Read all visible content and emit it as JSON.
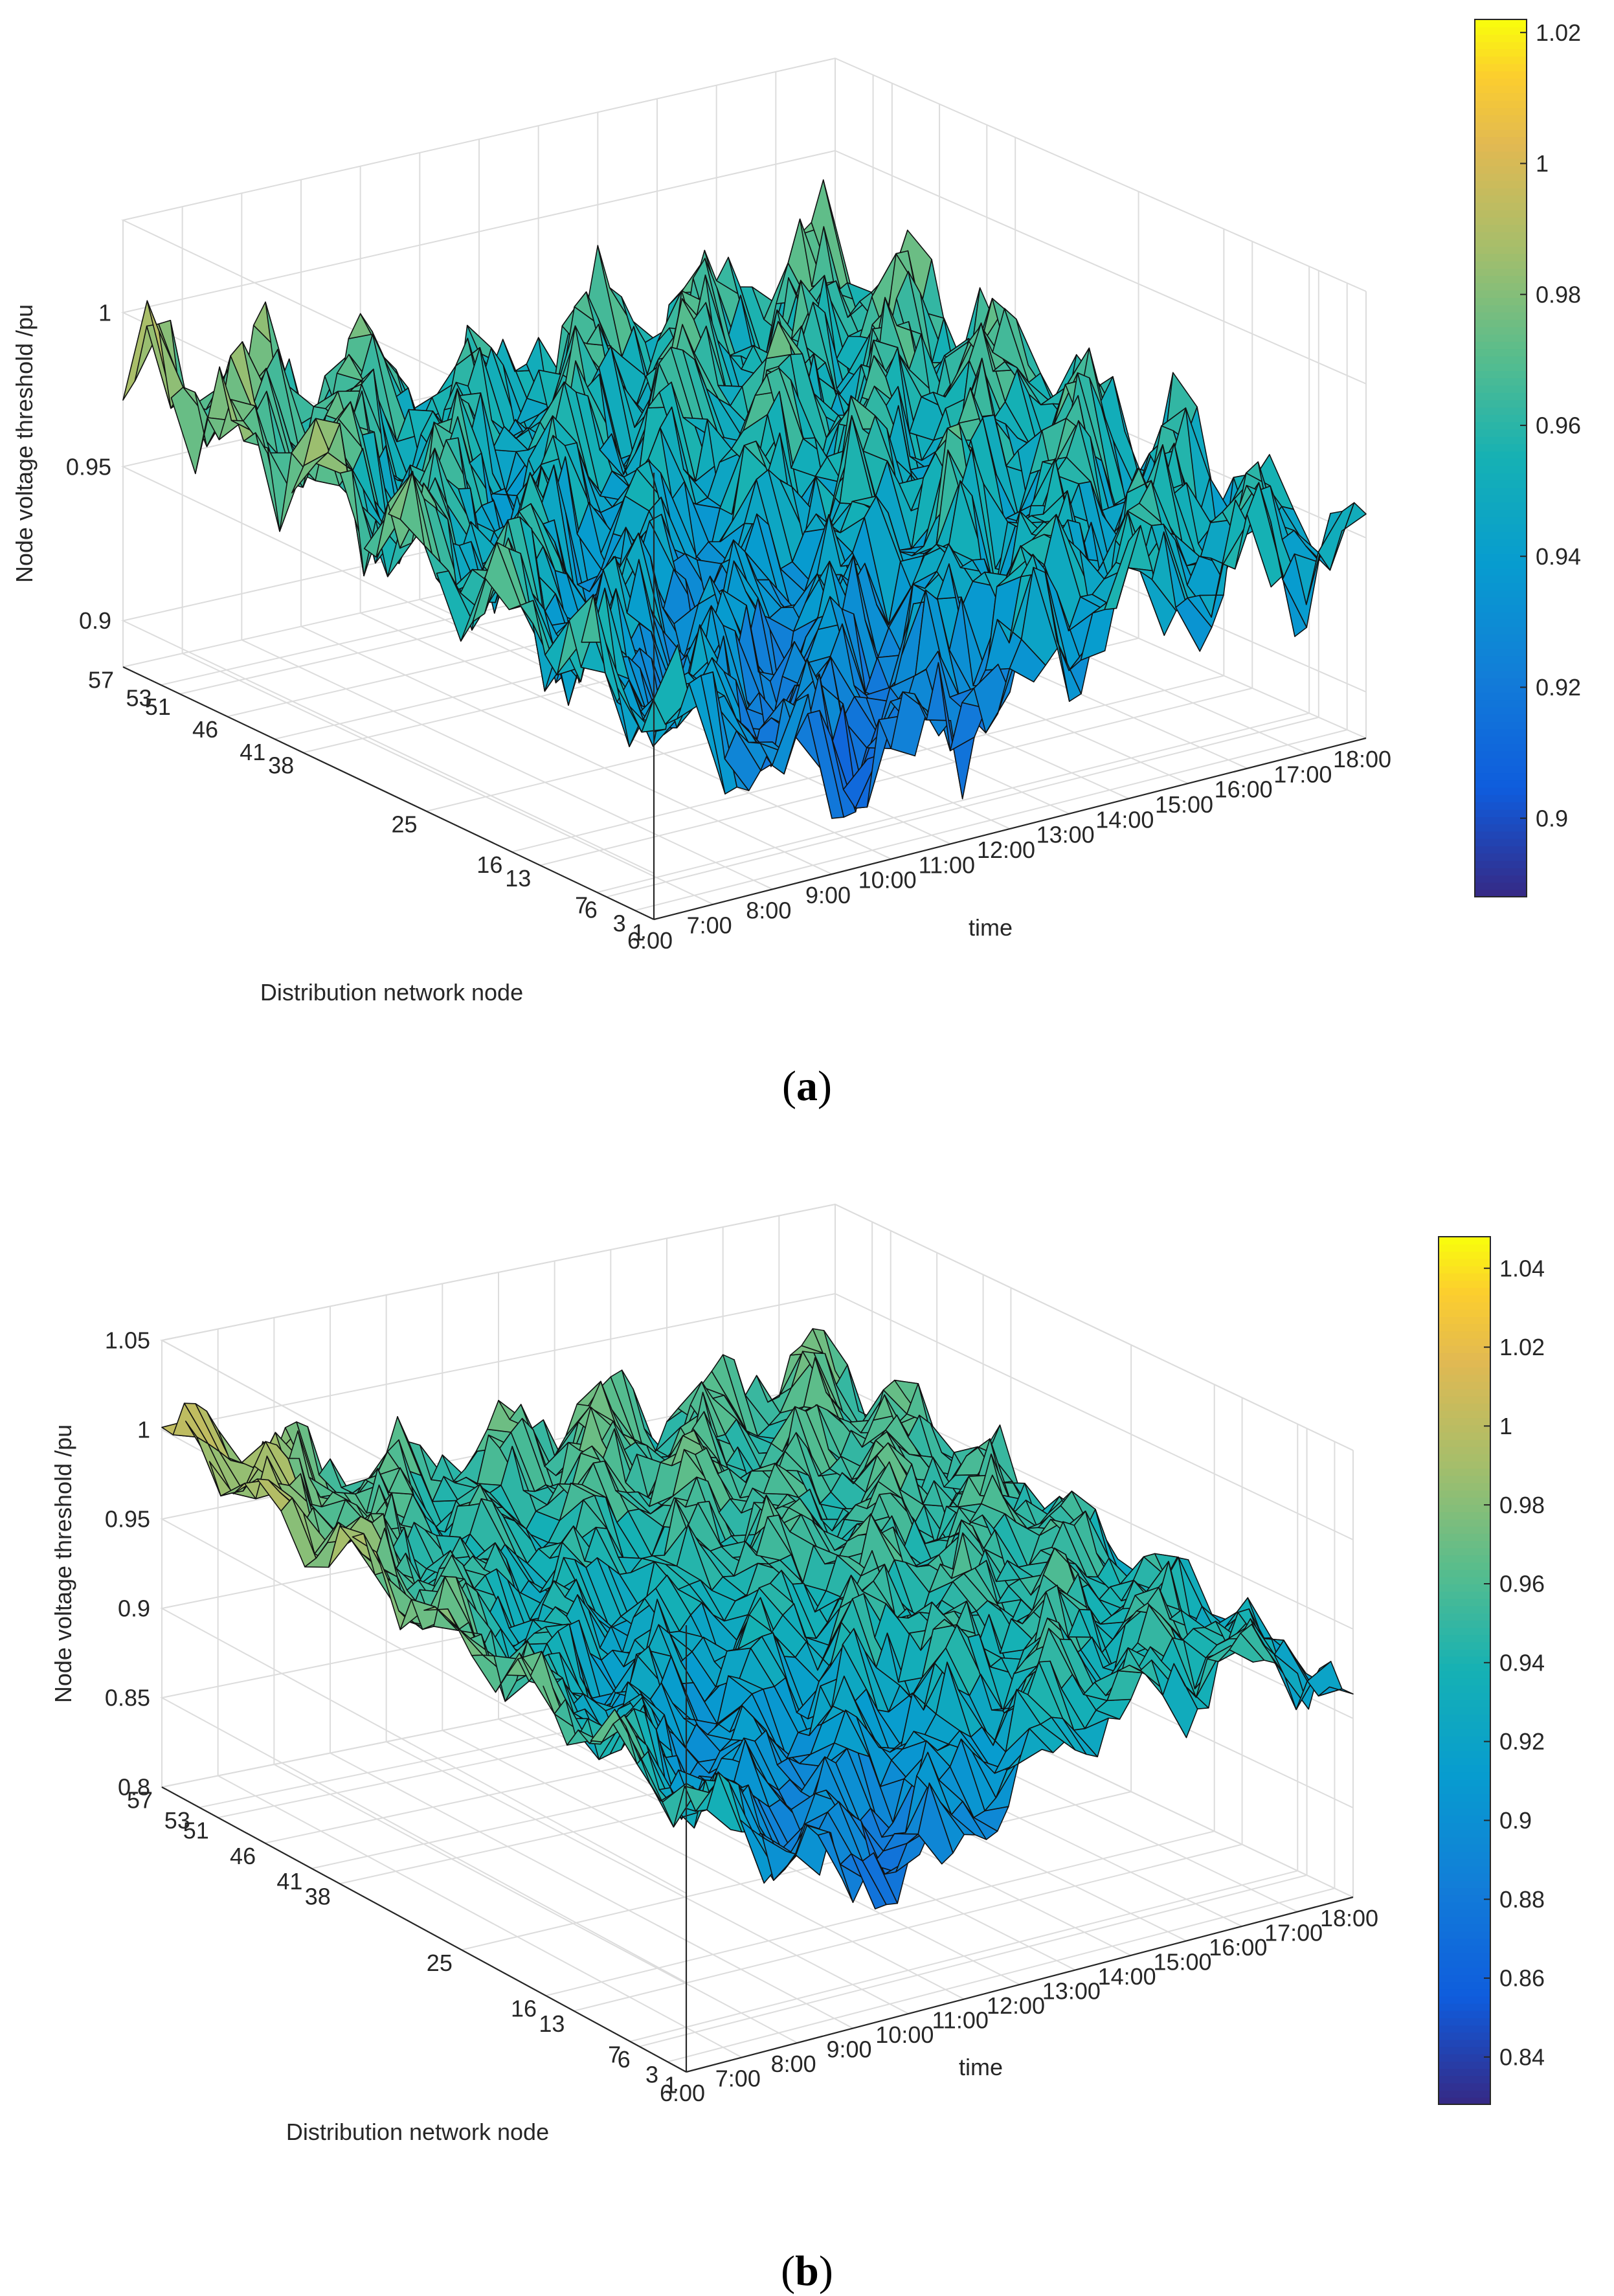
{
  "figure": {
    "panels": [
      {
        "label": "a",
        "caption_open": "(",
        "caption_close": ")"
      },
      {
        "label": "b",
        "caption_open": "(",
        "caption_close": ")"
      }
    ]
  },
  "chart_data": [
    {
      "type": "surface",
      "panel": "a",
      "title": "",
      "xlabel": "time",
      "ylabel": "Distribution network node",
      "zlabel": "Node voltage threshold /pu",
      "x_ticks": [
        "6:00",
        "7:00",
        "8:00",
        "9:00",
        "10:00",
        "11:00",
        "12:00",
        "13:00",
        "14:00",
        "15:00",
        "16:00",
        "17:00",
        "18:00"
      ],
      "y_ticks": [
        "1",
        "3",
        "6",
        "7",
        "13",
        "16",
        "25",
        "38",
        "41",
        "46",
        "51",
        "53",
        "57"
      ],
      "y_tick_values": [
        1,
        3,
        6,
        7,
        13,
        16,
        25,
        38,
        41,
        46,
        51,
        53,
        57
      ],
      "z_ticks": [
        "0.9",
        "0.95",
        "1"
      ],
      "z_tick_values": [
        0.9,
        0.95,
        1.0
      ],
      "zlim": [
        0.885,
        1.03
      ],
      "colorbar": {
        "ticks": [
          "0.9",
          "0.92",
          "0.94",
          "0.96",
          "0.98",
          "1",
          "1.02"
        ],
        "tick_values": [
          0.9,
          0.92,
          0.94,
          0.96,
          0.98,
          1.0,
          1.02
        ],
        "range": [
          0.888,
          1.022
        ]
      },
      "grid": true,
      "colormap": "parula",
      "surface_trend": {
        "time_axis_hours": [
          6,
          7,
          8,
          9,
          10,
          11,
          12,
          13,
          14,
          15,
          16,
          17,
          18
        ],
        "mean_level_by_hour": [
          0.985,
          0.975,
          0.97,
          0.965,
          0.96,
          0.955,
          0.955,
          0.96,
          0.962,
          0.958,
          0.96,
          0.965,
          0.97
        ],
        "node_drop_to_node_1": 0.045,
        "z_min": 0.888,
        "z_max": 1.02
      }
    },
    {
      "type": "surface",
      "panel": "b",
      "title": "",
      "xlabel": "time",
      "ylabel": "Distribution network node",
      "zlabel": "Node voltage threshold /pu",
      "x_ticks": [
        "6:00",
        "7:00",
        "8:00",
        "9:00",
        "10:00",
        "11:00",
        "12:00",
        "13:00",
        "14:00",
        "15:00",
        "16:00",
        "17:00",
        "18:00"
      ],
      "y_ticks": [
        "1",
        "3",
        "6",
        "7",
        "13",
        "16",
        "25",
        "38",
        "41",
        "46",
        "51",
        "53",
        "57"
      ],
      "y_tick_values": [
        1,
        3,
        6,
        7,
        13,
        16,
        25,
        38,
        41,
        46,
        51,
        53,
        57
      ],
      "z_ticks": [
        "0.8",
        "0.85",
        "0.9",
        "0.95",
        "1",
        "1.05"
      ],
      "z_tick_values": [
        0.8,
        0.85,
        0.9,
        0.95,
        1.0,
        1.05
      ],
      "zlim": [
        0.8,
        1.05
      ],
      "colorbar": {
        "ticks": [
          "0.84",
          "0.86",
          "0.88",
          "0.9",
          "0.92",
          "0.94",
          "0.96",
          "0.98",
          "1",
          "1.02",
          "1.04"
        ],
        "tick_values": [
          0.84,
          0.86,
          0.88,
          0.9,
          0.92,
          0.94,
          0.96,
          0.98,
          1.0,
          1.02,
          1.04
        ],
        "range": [
          0.828,
          1.048
        ]
      },
      "grid": true,
      "colormap": "parula",
      "surface_trend": {
        "time_axis_hours": [
          6,
          7,
          8,
          9,
          10,
          11,
          12,
          13,
          14,
          15,
          16,
          17,
          18
        ],
        "mean_level_by_hour": [
          1.0,
          0.99,
          0.975,
          0.965,
          0.955,
          0.955,
          0.96,
          0.965,
          0.96,
          0.955,
          0.96,
          0.965,
          0.96
        ],
        "node_drop_to_node_1": 0.08,
        "z_min": 0.83,
        "z_max": 1.045
      }
    }
  ]
}
